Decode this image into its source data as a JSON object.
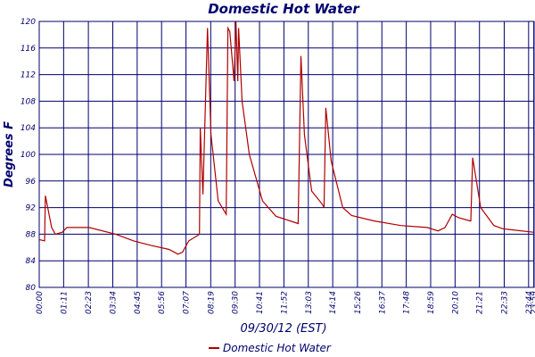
{
  "chart_data": {
    "type": "line",
    "title": "Domestic Hot Water",
    "x_label": "09/30/12 (EST)",
    "y_label": "Degrees F",
    "x": [
      0,
      0.26,
      0.3,
      0.6,
      0.78,
      1.12,
      1.34,
      2.42,
      3.71,
      4.58,
      5.44,
      6.3,
      6.73,
      6.95,
      7.25,
      7.68,
      7.77,
      7.81,
      7.94,
      8.16,
      8.33,
      8.68,
      9.07,
      9.15,
      9.24,
      9.45,
      9.54,
      9.63,
      9.67,
      9.84,
      10.19,
      10.83,
      11.48,
      12.56,
      12.69,
      12.86,
      13.21,
      13.73,
      13.81,
      13.9,
      14.16,
      14.72,
      15.15,
      16.23,
      17.53,
      18.82,
      19.34,
      19.68,
      20.03,
      20.33,
      20.89,
      20.93,
      21.02,
      21.41,
      22.05,
      22.49,
      23.96
    ],
    "series": [
      {
        "name": "Domestic Hot Water",
        "color": "#b00000",
        "values": [
          87.2,
          87,
          93.8,
          89,
          88,
          88.3,
          89,
          89,
          88,
          87,
          86.3,
          85.7,
          85,
          85.3,
          87,
          87.8,
          88,
          104,
          94,
          119,
          103,
          93,
          91,
          119,
          118.5,
          111,
          120,
          111,
          119,
          108,
          100,
          93,
          90.7,
          89.6,
          114.8,
          103,
          94.5,
          92.5,
          92,
          107,
          99,
          92,
          90.8,
          90,
          89.3,
          89,
          88.5,
          89,
          91,
          90.5,
          90,
          90,
          99.5,
          92,
          89.3,
          88.8,
          88.3
        ]
      }
    ],
    "xlim": [
      0,
      24
    ],
    "xticks": [
      {
        "value": 0,
        "label": "00:00"
      },
      {
        "value": 1.183,
        "label": "01:11"
      },
      {
        "value": 2.383,
        "label": "02:23"
      },
      {
        "value": 3.567,
        "label": "03:34"
      },
      {
        "value": 4.75,
        "label": "04:45"
      },
      {
        "value": 5.933,
        "label": "05:56"
      },
      {
        "value": 7.117,
        "label": "07:07"
      },
      {
        "value": 8.317,
        "label": "08:19"
      },
      {
        "value": 9.5,
        "label": "09:30"
      },
      {
        "value": 10.683,
        "label": "10:41"
      },
      {
        "value": 11.867,
        "label": "11:52"
      },
      {
        "value": 13.05,
        "label": "13:03"
      },
      {
        "value": 14.233,
        "label": "14:14"
      },
      {
        "value": 15.433,
        "label": "15:26"
      },
      {
        "value": 16.617,
        "label": "16:37"
      },
      {
        "value": 17.8,
        "label": "17:48"
      },
      {
        "value": 18.983,
        "label": "18:59"
      },
      {
        "value": 20.167,
        "label": "20:10"
      },
      {
        "value": 21.35,
        "label": "21:21"
      },
      {
        "value": 22.55,
        "label": "22:33"
      },
      {
        "value": 23.733,
        "label": "23:44"
      },
      {
        "value": 23.983,
        "label": "23:59"
      }
    ],
    "ylim": [
      80,
      120
    ],
    "yticks": [
      80,
      84,
      88,
      92,
      96,
      100,
      104,
      108,
      112,
      116,
      120
    ],
    "grid": true,
    "legend": "bottom"
  }
}
